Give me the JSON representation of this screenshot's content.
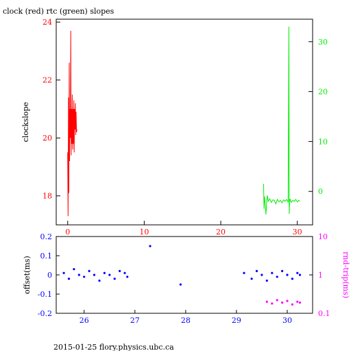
{
  "title": "clock (red) rtc (green) slopes",
  "footer": "2015-01-25 flory.physics.ubc.ca",
  "colors": {
    "clock": "#ff0000",
    "rtc": "#00ee00",
    "offset": "#0000ff",
    "rndtrip": "#ff00ff",
    "axis": "#000000"
  },
  "chart_data": [
    {
      "type": "line",
      "ylabel": "clockslope",
      "y2label": "",
      "xlim": [
        -1.5,
        32
      ],
      "ylim": [
        17,
        24.1
      ],
      "y2lim": [
        -6.7,
        34.5
      ],
      "xticks": [
        0,
        10,
        20,
        30
      ],
      "yticks": [
        18,
        20,
        22,
        24
      ],
      "y2ticks": [
        0,
        10,
        20,
        30
      ],
      "grid": false,
      "series": [
        {
          "name": "clock",
          "axis": "left",
          "x": [
            0.0,
            0.05,
            0.1,
            0.15,
            0.2,
            0.25,
            0.3,
            0.35,
            0.4,
            0.45,
            0.5,
            0.55,
            0.6,
            0.65,
            0.7,
            0.75,
            0.8,
            0.85,
            0.9,
            0.95,
            1.0,
            1.05,
            1.1,
            1.15,
            1.2
          ],
          "y": [
            19.5,
            17.3,
            21.4,
            18.1,
            22.6,
            19.2,
            21.0,
            20.0,
            23.7,
            19.4,
            21.0,
            19.8,
            21.5,
            19.6,
            21.0,
            19.8,
            21.3,
            19.5,
            21.0,
            20.3,
            21.2,
            20.1,
            20.9,
            20.2,
            20.3
          ]
        },
        {
          "name": "rtc",
          "axis": "right",
          "x": [
            25.6,
            25.65,
            25.7,
            25.8,
            25.9,
            26.0,
            26.1,
            26.2,
            26.4,
            26.6,
            26.8,
            27.0,
            27.2,
            27.4,
            27.6,
            27.8,
            28.0,
            28.2,
            28.4,
            28.6,
            28.8,
            28.9,
            28.95,
            29.0,
            29.05,
            29.2,
            29.4,
            29.6,
            29.8,
            30.0,
            30.2,
            30.3
          ],
          "y": [
            1.5,
            -3.5,
            -1.0,
            -2.5,
            -4.6,
            -2.0,
            -0.8,
            -2.0,
            -1.5,
            -2.2,
            -1.7,
            -1.8,
            -2.5,
            -1.6,
            -2.1,
            -1.8,
            -2.3,
            -1.7,
            -2.0,
            -1.6,
            -2.2,
            33.0,
            -4.5,
            -2.0,
            -1.5,
            -2.2,
            -1.8,
            -2.0,
            -1.6,
            -2.1,
            -1.8,
            -2.0
          ]
        }
      ]
    },
    {
      "type": "scatter",
      "ylabel": "offset(ms)",
      "y2label": "rnd-trip(ms)",
      "xlim": [
        25.45,
        30.5
      ],
      "ylim": [
        -0.2,
        0.2
      ],
      "y2lim": [
        0.1,
        10
      ],
      "y2scale": "log",
      "xticks": [
        26,
        27,
        28,
        29,
        30
      ],
      "yticks": [
        -0.2,
        -0.1,
        0,
        0.1,
        0.2
      ],
      "y2ticks": [
        0.1,
        1,
        10
      ],
      "grid": false,
      "series": [
        {
          "name": "offset",
          "axis": "left",
          "x": [
            25.6,
            25.7,
            25.8,
            25.9,
            26.0,
            26.1,
            26.2,
            26.3,
            26.4,
            26.5,
            26.6,
            26.7,
            26.8,
            26.85,
            27.3,
            27.9,
            29.15,
            29.3,
            29.4,
            29.5,
            29.6,
            29.7,
            29.8,
            29.9,
            30.0,
            30.1,
            30.2,
            30.25
          ],
          "y": [
            0.01,
            -0.02,
            0.03,
            0.0,
            -0.01,
            0.02,
            0.0,
            -0.03,
            0.01,
            0.0,
            -0.02,
            0.02,
            0.01,
            -0.01,
            0.15,
            -0.05,
            0.01,
            -0.02,
            0.02,
            0.0,
            -0.03,
            0.01,
            -0.01,
            0.02,
            0.0,
            -0.02,
            0.01,
            0.0
          ]
        },
        {
          "name": "rnd-trip",
          "axis": "right",
          "x": [
            29.6,
            29.7,
            29.8,
            29.9,
            30.0,
            30.1,
            30.2,
            30.25
          ],
          "y": [
            0.2,
            0.18,
            0.22,
            0.19,
            0.21,
            0.17,
            0.2,
            0.19
          ]
        }
      ]
    }
  ]
}
